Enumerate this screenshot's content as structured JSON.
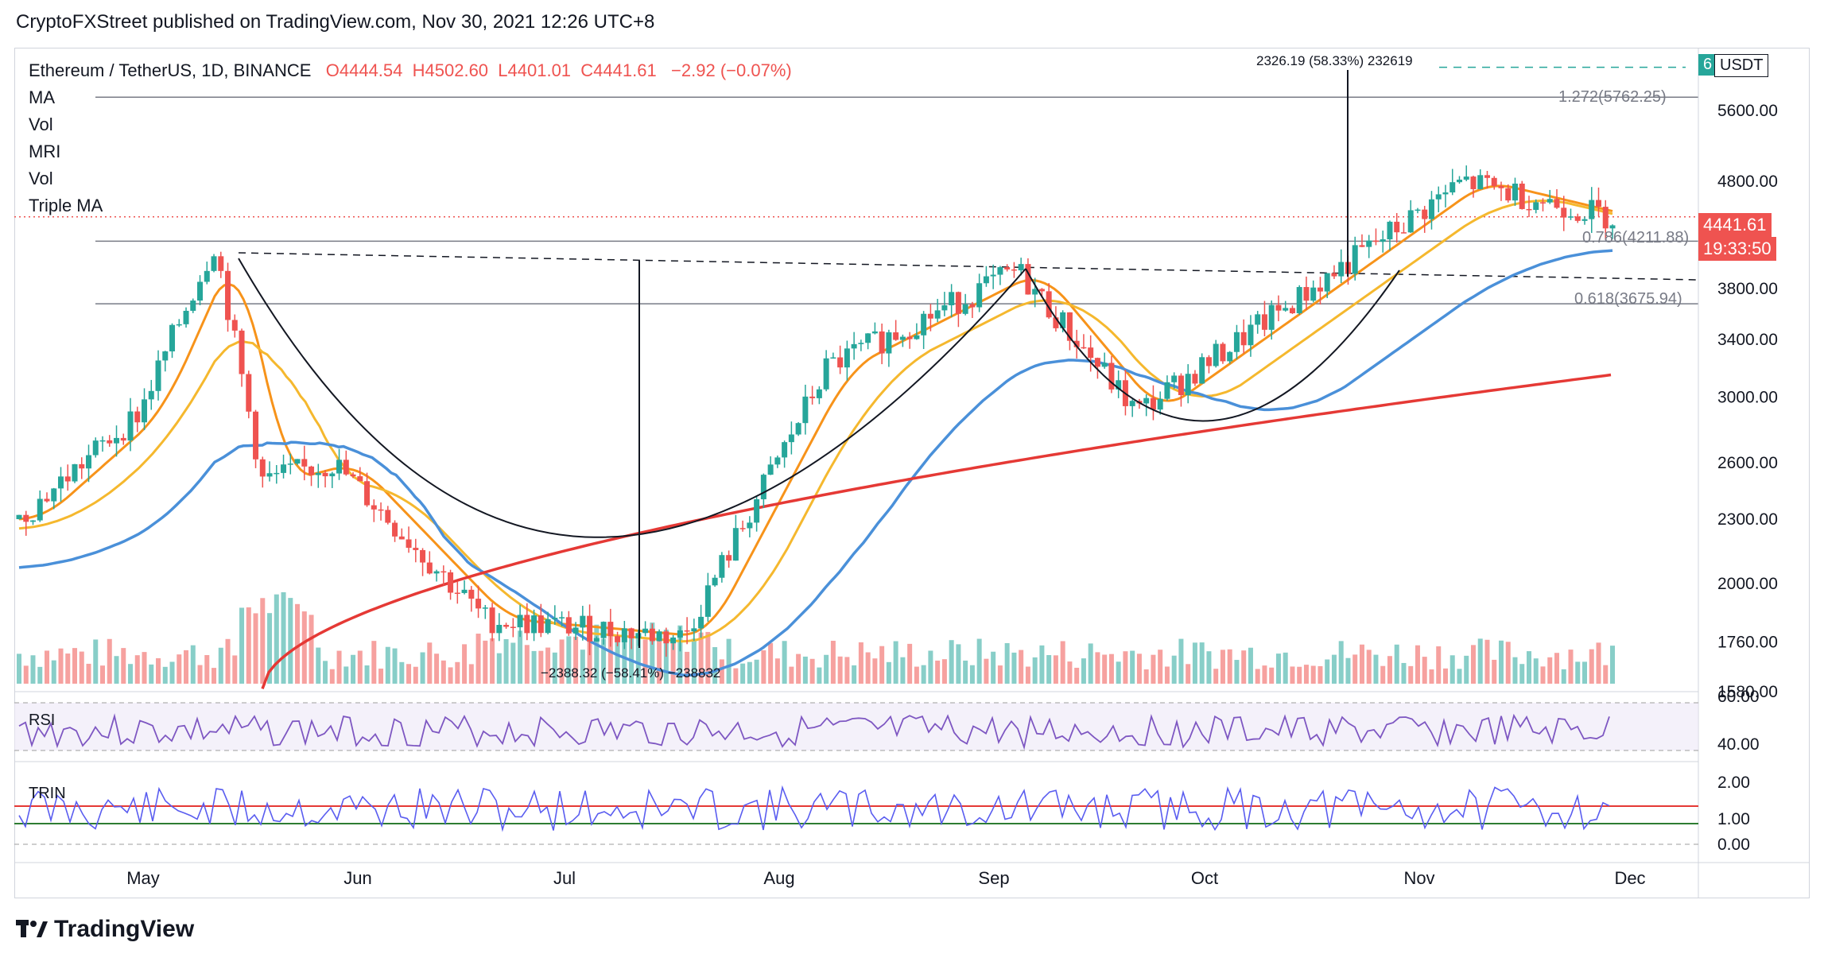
{
  "header": {
    "published": "CryptoFXStreet published on TradingView.com, Nov 30, 2021 12:26 UTC+8"
  },
  "footer": {
    "brand": "TradingView"
  },
  "legend": {
    "symbol": "Ethereum / TetherUS, 1D, BINANCE",
    "open": "O4444.54",
    "high": "H4502.60",
    "low": "L4401.01",
    "close": "C4441.61",
    "change": "−2.92 (−0.07%)",
    "indicators": [
      "MA",
      "Vol",
      "MRI",
      "Vol",
      "Triple MA"
    ]
  },
  "price_scale": {
    "currency_badge": "USDT",
    "alert_count": "6",
    "last_price": "4441.61",
    "countdown": "19:33:50",
    "ticks": [
      "5600.00",
      "4800.00",
      "3800.00",
      "3400.00",
      "3000.00",
      "2600.00",
      "2300.00",
      "2000.00",
      "1760.00",
      "1580.00"
    ]
  },
  "fib_labels": {
    "fib_1272": "1.272(5762.25)",
    "fib_0786": "0.786(4211.88)",
    "fib_0618": "0.618(3675.94)"
  },
  "measure_labels": {
    "up": "2326.19 (58.33%) 232619",
    "down": "−2388.32 (−58.41%) −238832"
  },
  "rsi_pane": {
    "label": "RSI",
    "ticks": [
      "60.00",
      "40.00"
    ]
  },
  "trin_pane": {
    "label": "TRIN",
    "ticks": [
      "2.00",
      "1.00",
      "0.00"
    ]
  },
  "x_axis": {
    "labels": [
      "May",
      "Jun",
      "Jul",
      "Aug",
      "Sep",
      "Oct",
      "Nov",
      "Dec"
    ]
  },
  "colors": {
    "up": "#26a69a",
    "down": "#ef5350",
    "ma_fast": "#f7931a",
    "ma_mid": "#f5b82e",
    "ma_slow_blue": "#4a90d9",
    "ma_200": "#e53935",
    "rsi": "#7e57c2",
    "trin": "#5a5df0"
  },
  "chart_data": {
    "type": "candlestick",
    "title": "Ethereum / TetherUS, 1D, BINANCE",
    "x_range": [
      "Apr 2021",
      "Dec 2021"
    ],
    "y_scale": "log",
    "ylim": [
      1580,
      6200
    ],
    "approx_closes": [
      {
        "x": "Apr 15",
        "y": 2300
      },
      {
        "x": "May 1",
        "y": 2900
      },
      {
        "x": "May 12",
        "y": 4200
      },
      {
        "x": "May 19",
        "y": 2500
      },
      {
        "x": "Jun 1",
        "y": 2600
      },
      {
        "x": "Jun 22",
        "y": 1850
      },
      {
        "x": "Jul 20",
        "y": 1780
      },
      {
        "x": "Aug 15",
        "y": 3200
      },
      {
        "x": "Sep 3",
        "y": 3950
      },
      {
        "x": "Sep 21",
        "y": 2900
      },
      {
        "x": "Oct 15",
        "y": 3800
      },
      {
        "x": "Nov 10",
        "y": 4800
      },
      {
        "x": "Nov 29",
        "y": 4441.61
      }
    ],
    "last_close": 4441.61
  }
}
